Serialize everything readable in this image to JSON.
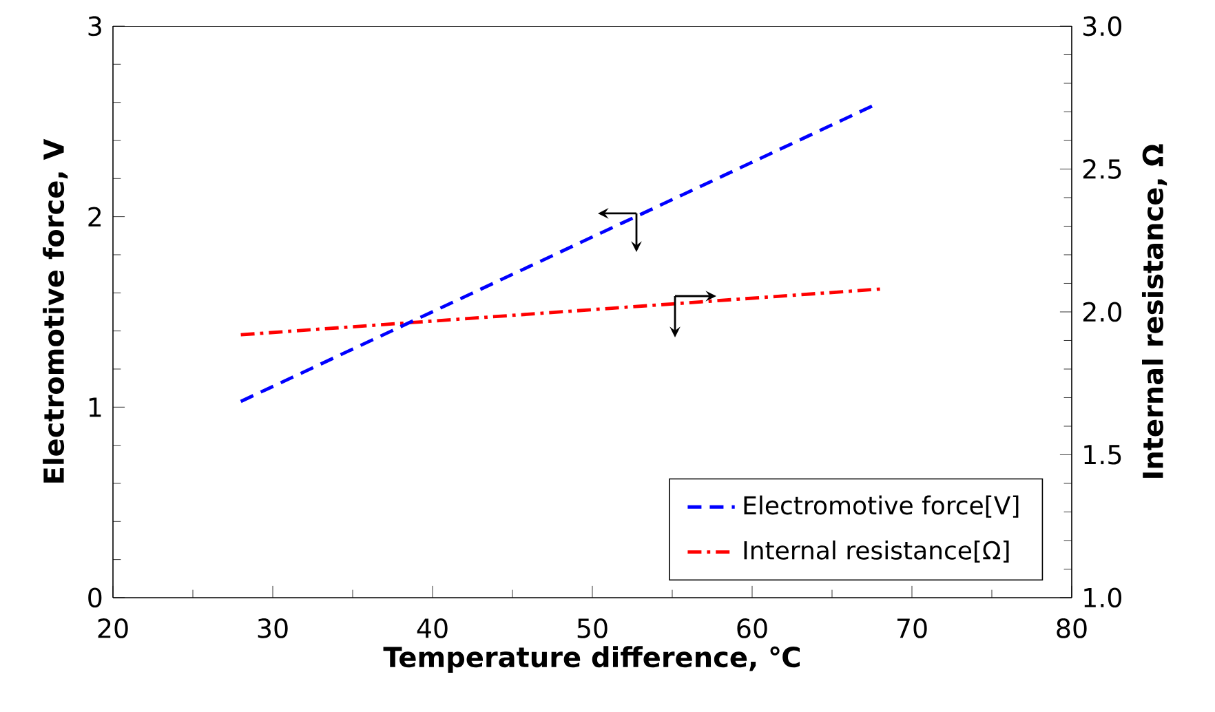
{
  "chart_data": {
    "type": "line",
    "xlabel": "Temperature difference, ℃",
    "ylabel": "Electromotive force, V",
    "y2label": "Internal resistance, Ω",
    "xlim": [
      20,
      80
    ],
    "xticks": [
      20,
      30,
      40,
      50,
      60,
      70,
      80
    ],
    "ylim": [
      0,
      3
    ],
    "yticks": [
      0,
      1,
      2,
      3
    ],
    "y2lim": [
      1.0,
      3.0
    ],
    "y2ticks": [
      {
        "value": 1.0,
        "label": "1.0"
      },
      {
        "value": 1.5,
        "label": "1.5"
      },
      {
        "value": 2.0,
        "label": "2.0"
      },
      {
        "value": 2.5,
        "label": "2.5"
      },
      {
        "value": 3.0,
        "label": "3.0"
      }
    ],
    "legend": "bottom right",
    "grid": false,
    "marker": "none",
    "series": [
      {
        "name": "Electromotive force[V]",
        "color": "#0000ff",
        "line_style": "dashed",
        "x": [
          28,
          67.5
        ],
        "values": [
          1.03,
          2.58
        ]
      },
      {
        "name": "Internal resistance[Ω]",
        "color": "#ff0000",
        "line_style": "dashdot",
        "axis": "y2",
        "x": [
          28,
          68
        ],
        "values": [
          1.92,
          2.08
        ]
      }
    ]
  }
}
